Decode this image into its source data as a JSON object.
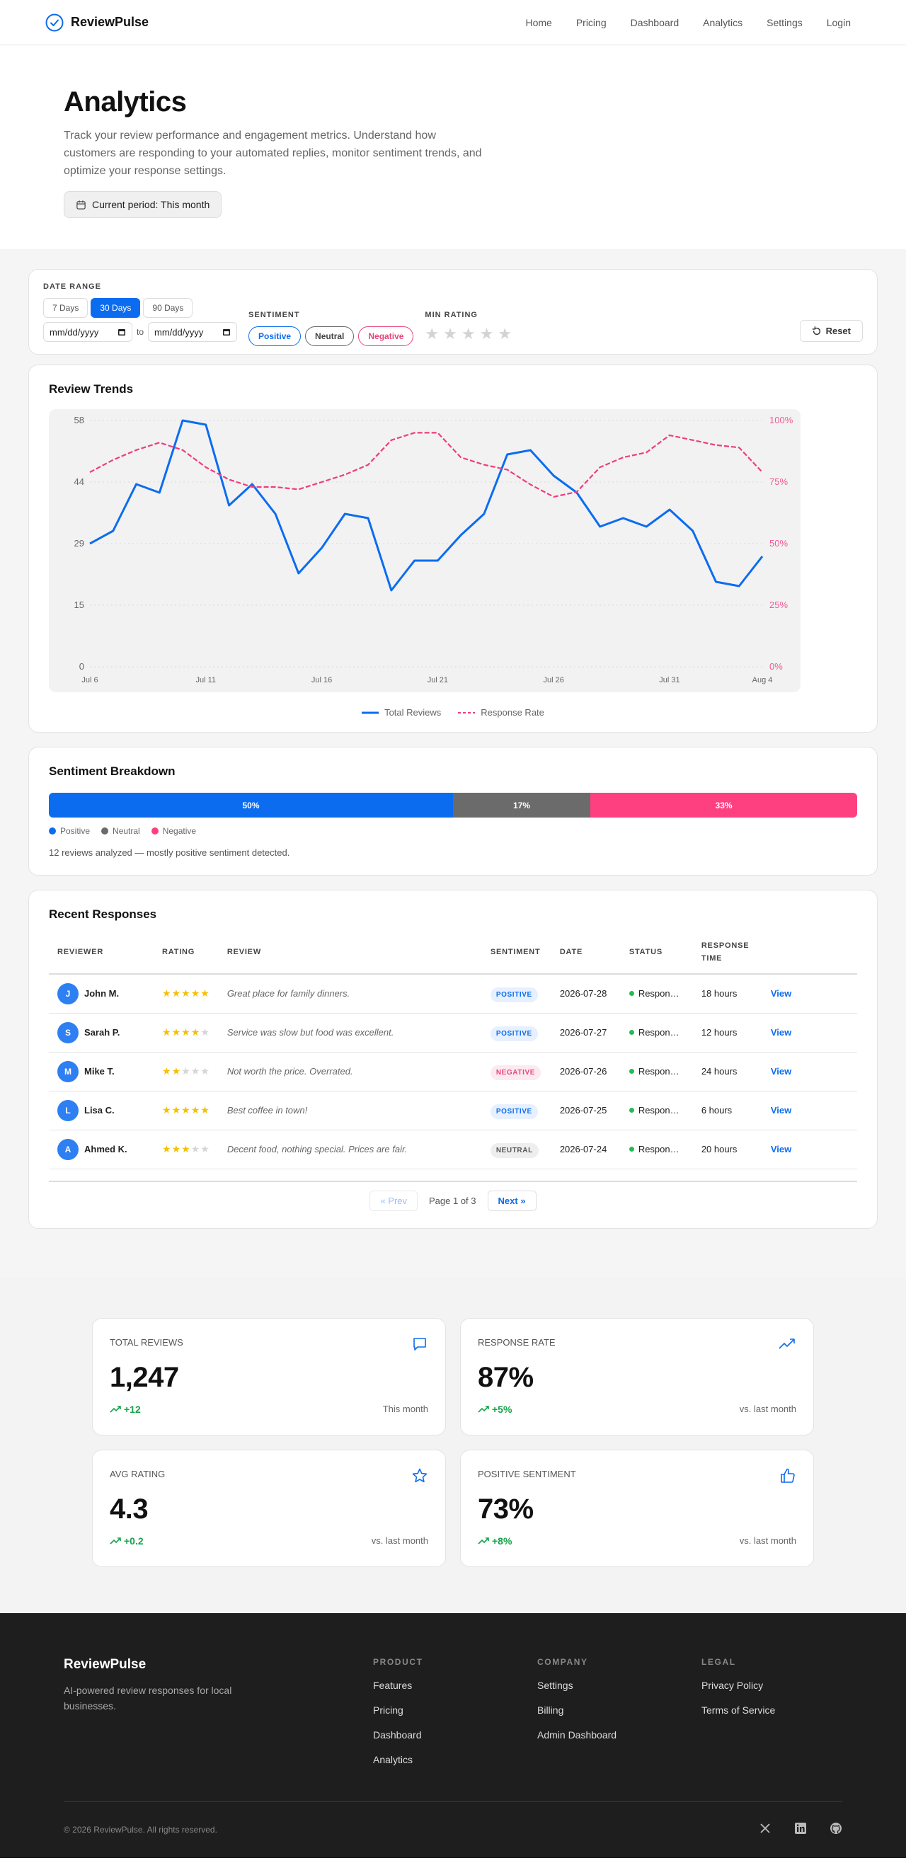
{
  "nav": {
    "brand": "ReviewPulse",
    "links": [
      "Home",
      "Pricing",
      "Dashboard",
      "Analytics",
      "Settings",
      "Login"
    ]
  },
  "hero": {
    "title": "Analytics",
    "description": "Track your review performance and engagement metrics. Understand how customers are responding to your automated replies, monitor sentiment trends, and optimize your response settings.",
    "period": "Current period: This month"
  },
  "filters": {
    "date_range_label": "DATE RANGE",
    "ranges": [
      "7 Days",
      "30 Days",
      "90 Days"
    ],
    "active_range": "30 Days",
    "date_from_placeholder": "mm/dd/yyyy",
    "date_to_placeholder": "mm/dd/yyyy",
    "to_label": "to",
    "sentiment_label": "SENTIMENT",
    "sentiments": [
      "Positive",
      "Neutral",
      "Negative"
    ],
    "min_rating_label": "MIN RATING",
    "reset_label": "Reset"
  },
  "trends": {
    "title": "Review Trends",
    "legend": [
      "Total Reviews",
      "Response Rate"
    ]
  },
  "chart_data": {
    "type": "line",
    "x_ticks": [
      "Jul 6",
      "Jul 11",
      "Jul 16",
      "Jul 21",
      "Jul 26",
      "Jul 31",
      "Aug 4"
    ],
    "y_left_ticks": [
      "0",
      "15",
      "29",
      "44",
      "58"
    ],
    "y_right_ticks": [
      "0%",
      "25%",
      "50%",
      "75%",
      "100%"
    ],
    "ylim_left": [
      0,
      58
    ],
    "ylim_right": [
      0,
      100
    ],
    "grid": true,
    "legend_position": "bottom-center",
    "series": [
      {
        "name": "Total Reviews",
        "axis": "left",
        "color": "#0b6cf0",
        "style": "solid",
        "values": [
          29,
          32,
          43,
          41,
          58,
          57,
          38,
          43,
          36,
          22,
          28,
          36,
          35,
          18,
          25,
          25,
          31,
          36,
          50,
          51,
          45,
          41,
          33,
          35,
          33,
          37,
          32,
          20,
          19,
          26
        ]
      },
      {
        "name": "Response Rate",
        "axis": "right",
        "color": "#ee3d7e",
        "style": "dashed",
        "values": [
          79,
          84,
          88,
          91,
          88,
          81,
          76,
          73,
          73,
          72,
          75,
          78,
          82,
          92,
          95,
          95,
          85,
          82,
          80,
          74,
          69,
          71,
          81,
          85,
          87,
          94,
          92,
          90,
          89,
          79
        ]
      }
    ]
  },
  "sentiment": {
    "title": "Sentiment Breakdown",
    "segments": [
      {
        "name": "Positive",
        "label": "50%",
        "value": 50,
        "color": "#0b6cf0"
      },
      {
        "name": "Neutral",
        "label": "17%",
        "value": 17,
        "color": "#6b6b6b"
      },
      {
        "name": "Negative",
        "label": "33%",
        "value": 33,
        "color": "#ff4080"
      }
    ],
    "note": "12 reviews analyzed — mostly positive sentiment detected."
  },
  "responses": {
    "title": "Recent Responses",
    "columns": [
      "REVIEWER",
      "RATING",
      "REVIEW",
      "SENTIMENT",
      "DATE",
      "STATUS",
      "RESPONSE TIME",
      ""
    ],
    "rows": [
      {
        "initial": "J",
        "name": "John M.",
        "rating": 5,
        "review": "Great place for family dinners.",
        "sentiment": "POSITIVE",
        "sentiment_key": "positive",
        "date": "2026-07-28",
        "status": "Responded",
        "response_time": "18 hours",
        "action": "View"
      },
      {
        "initial": "S",
        "name": "Sarah P.",
        "rating": 4,
        "review": "Service was slow but food was excellent.",
        "sentiment": "POSITIVE",
        "sentiment_key": "positive",
        "date": "2026-07-27",
        "status": "Responded",
        "response_time": "12 hours",
        "action": "View"
      },
      {
        "initial": "M",
        "name": "Mike T.",
        "rating": 2,
        "review": "Not worth the price. Overrated.",
        "sentiment": "NEGATIVE",
        "sentiment_key": "negative",
        "date": "2026-07-26",
        "status": "Responded",
        "response_time": "24 hours",
        "action": "View"
      },
      {
        "initial": "L",
        "name": "Lisa C.",
        "rating": 5,
        "review": "Best coffee in town!",
        "sentiment": "POSITIVE",
        "sentiment_key": "positive",
        "date": "2026-07-25",
        "status": "Responded",
        "response_time": "6 hours",
        "action": "View"
      },
      {
        "initial": "A",
        "name": "Ahmed K.",
        "rating": 3,
        "review": "Decent food, nothing special. Prices are fair.",
        "sentiment": "NEUTRAL",
        "sentiment_key": "neutral",
        "date": "2026-07-24",
        "status": "Responded",
        "response_time": "20 hours",
        "action": "View"
      }
    ],
    "pager": {
      "prev": "« Prev",
      "info": "Page 1 of 3",
      "next": "Next »"
    }
  },
  "stats": [
    {
      "label": "TOTAL REVIEWS",
      "value": "1,247",
      "delta": "+12",
      "note": "This month",
      "icon": "chat-icon"
    },
    {
      "label": "RESPONSE RATE",
      "value": "87%",
      "delta": "+5%",
      "note": "vs. last month",
      "icon": "trending-up-icon"
    },
    {
      "label": "AVG RATING",
      "value": "4.3",
      "delta": "+0.2",
      "note": "vs. last month",
      "icon": "star-icon"
    },
    {
      "label": "POSITIVE SENTIMENT",
      "value": "73%",
      "delta": "+8%",
      "note": "vs. last month",
      "icon": "thumbs-up-icon"
    }
  ],
  "footer": {
    "brand": "ReviewPulse",
    "tagline": "AI-powered review responses for local businesses.",
    "columns": [
      {
        "title": "PRODUCT",
        "links": [
          "Features",
          "Pricing",
          "Dashboard",
          "Analytics"
        ]
      },
      {
        "title": "COMPANY",
        "links": [
          "Settings",
          "Billing",
          "Admin Dashboard"
        ]
      },
      {
        "title": "LEGAL",
        "links": [
          "Privacy Policy",
          "Terms of Service"
        ]
      }
    ],
    "copyright": "© 2026 ReviewPulse. All rights reserved.",
    "social": [
      "x-icon",
      "linkedin-icon",
      "github-icon"
    ]
  },
  "colors": {
    "accent": "#0b6cf0",
    "positive": "#16a34a",
    "negative": "#e5467e",
    "footer_bg": "#1e1e1e"
  }
}
